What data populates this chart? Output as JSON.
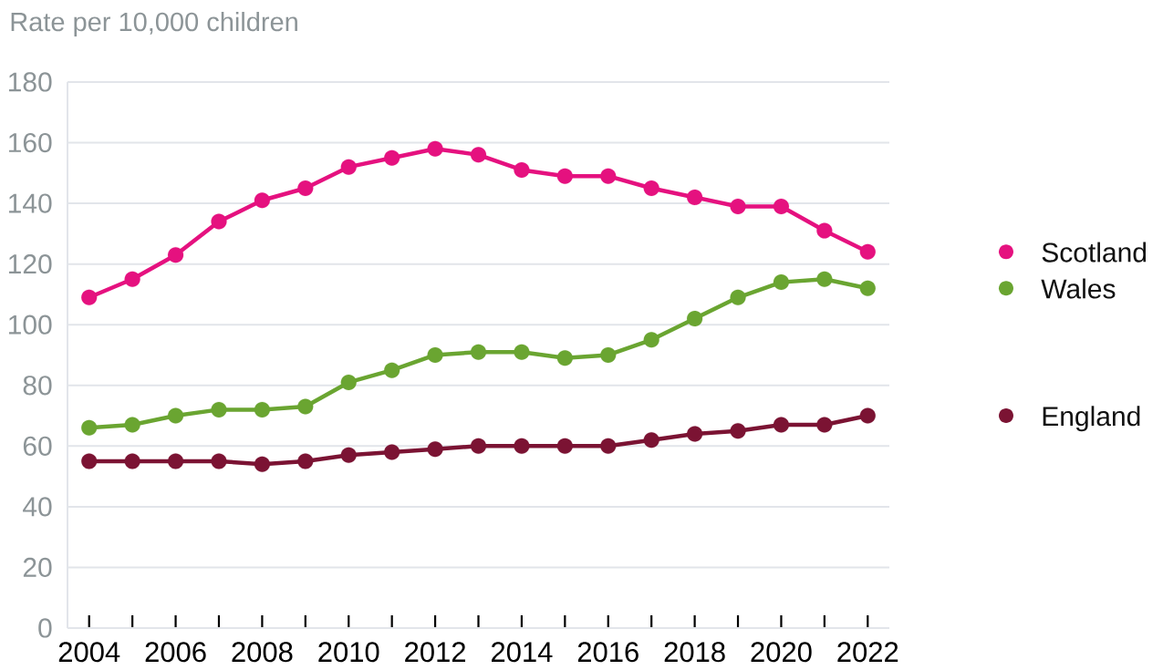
{
  "chart_data": {
    "type": "line",
    "ylabel": "Rate per 10,000 children",
    "x": [
      2004,
      2005,
      2006,
      2007,
      2008,
      2009,
      2010,
      2011,
      2012,
      2013,
      2014,
      2015,
      2016,
      2017,
      2018,
      2019,
      2020,
      2021,
      2022
    ],
    "series": [
      {
        "name": "Scotland",
        "color": "#e5117f",
        "values": [
          109,
          115,
          123,
          134,
          141,
          145,
          152,
          155,
          158,
          156,
          151,
          149,
          149,
          145,
          142,
          139,
          139,
          131,
          124
        ]
      },
      {
        "name": "Wales",
        "color": "#6aa531",
        "values": [
          66,
          67,
          70,
          72,
          72,
          73,
          81,
          85,
          90,
          91,
          91,
          89,
          90,
          95,
          102,
          109,
          114,
          115,
          112
        ]
      },
      {
        "name": "England",
        "color": "#7b1333",
        "values": [
          55,
          55,
          55,
          55,
          54,
          55,
          57,
          58,
          59,
          60,
          60,
          60,
          60,
          62,
          64,
          65,
          67,
          67,
          70
        ]
      }
    ],
    "xlim": [
      2003.5,
      2022.5
    ],
    "xticks": [
      2004,
      {
        "value": 2005,
        "label": null
      },
      2006,
      {
        "value": 2007,
        "label": null
      },
      2008,
      {
        "value": 2009,
        "label": null
      },
      2010,
      {
        "value": 2011,
        "label": null
      },
      2012,
      {
        "value": 2013,
        "label": null
      },
      2014,
      {
        "value": 2015,
        "label": null
      },
      2016,
      {
        "value": 2017,
        "label": null
      },
      2018,
      {
        "value": 2019,
        "label": null
      },
      2020,
      {
        "value": 2021,
        "label": null
      },
      2022
    ],
    "ylim": [
      0,
      180
    ],
    "yticks": [
      0,
      20,
      40,
      60,
      80,
      100,
      120,
      140,
      160,
      180
    ],
    "grid": "y",
    "legend": "right",
    "marker": "circle",
    "line_style": "solid"
  }
}
